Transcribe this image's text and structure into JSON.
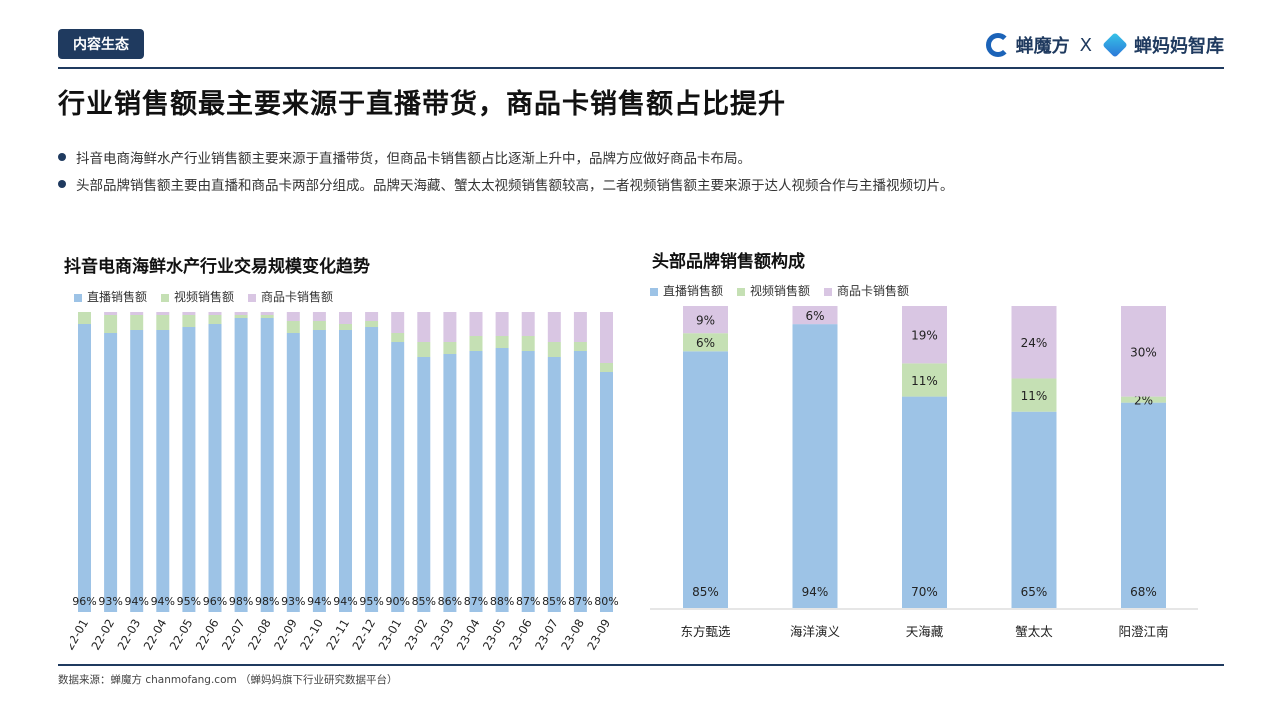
{
  "header": {
    "tag": "内容生态",
    "brand_left": "蝉魔方",
    "brand_x": "X",
    "brand_right": "蝉妈妈智库"
  },
  "title": "行业销售额最主要来源于直播带货，商品卡销售额占比提升",
  "bullets": [
    "抖音电商海鲜水产行业销售额主要来源于直播带货，但商品卡销售额占比逐渐上升中，品牌方应做好商品卡布局。",
    "头部品牌销售额主要由直播和商品卡两部分组成。品牌天海藏、蟹太太视频销售额较高，二者视频销售额主要来源于达人视频合作与主播视频切片。"
  ],
  "colors": {
    "live": "#9dc3e6",
    "video": "#c5e0b4",
    "card": "#d9c6e3",
    "navy": "#1f3a5f"
  },
  "source": "数据来源：蝉魔方 chanmofang.com （蝉妈妈旗下行业研究数据平台）",
  "chart_data": [
    {
      "type": "bar",
      "stacked": true,
      "percent": true,
      "title": "抖音电商海鲜水产行业交易规模变化趋势",
      "legend": [
        "直播销售额",
        "视频销售额",
        "商品卡销售额"
      ],
      "categories": [
        "22-01",
        "22-02",
        "22-03",
        "22-04",
        "22-05",
        "22-06",
        "22-07",
        "22-08",
        "22-09",
        "22-10",
        "22-11",
        "22-12",
        "23-01",
        "23-02",
        "23-03",
        "23-04",
        "23-05",
        "23-06",
        "23-07",
        "23-08",
        "23-09"
      ],
      "series": [
        {
          "name": "直播销售额",
          "values": [
            96,
            93,
            94,
            94,
            95,
            96,
            98,
            98,
            93,
            94,
            94,
            95,
            90,
            85,
            86,
            87,
            88,
            87,
            85,
            87,
            80
          ],
          "labels": [
            "96%",
            "93%",
            "94%",
            "94%",
            "95%",
            "96%",
            "98%",
            "98%",
            "93%",
            "94%",
            "94%",
            "95%",
            "90%",
            "85%",
            "86%",
            "87%",
            "88%",
            "87%",
            "85%",
            "87%",
            "80%"
          ]
        },
        {
          "name": "视频销售额",
          "values": [
            4,
            6,
            5,
            5,
            4,
            3,
            1,
            1,
            4,
            3,
            2,
            2,
            3,
            5,
            4,
            5,
            4,
            5,
            5,
            3,
            3
          ]
        },
        {
          "name": "商品卡销售额",
          "values": [
            0,
            1,
            1,
            1,
            1,
            1,
            1,
            1,
            3,
            3,
            4,
            3,
            7,
            10,
            10,
            8,
            8,
            8,
            10,
            10,
            17
          ]
        }
      ],
      "ylim": [
        0,
        100
      ]
    },
    {
      "type": "bar",
      "stacked": true,
      "percent": true,
      "title": "头部品牌销售额构成",
      "legend": [
        "直播销售额",
        "视频销售额",
        "商品卡销售额"
      ],
      "categories": [
        "东方甄选",
        "海洋演义",
        "天海藏",
        "蟹太太",
        "阳澄江南"
      ],
      "series": [
        {
          "name": "直播销售额",
          "values": [
            85,
            94,
            70,
            65,
            68
          ],
          "labels": [
            "85%",
            "94%",
            "70%",
            "65%",
            "68%"
          ]
        },
        {
          "name": "视频销售额",
          "values": [
            6,
            0,
            11,
            11,
            2
          ],
          "labels": [
            "6%",
            "",
            "11%",
            "11%",
            "2%"
          ]
        },
        {
          "name": "商品卡销售额",
          "values": [
            9,
            6,
            19,
            24,
            30
          ],
          "labels": [
            "9%",
            "6%",
            "19%",
            "24%",
            "30%"
          ]
        }
      ],
      "ylim": [
        0,
        100
      ]
    }
  ]
}
